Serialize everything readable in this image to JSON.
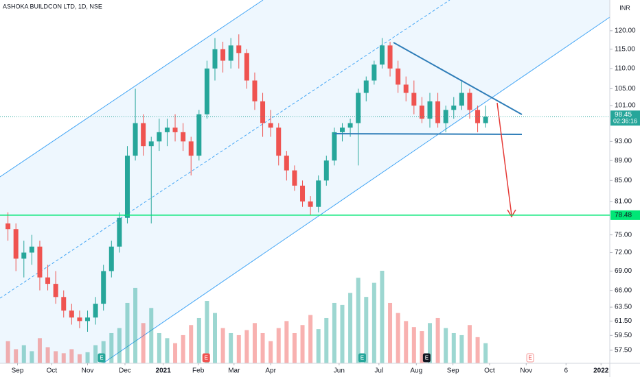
{
  "chart_data": {
    "type": "candlestick",
    "title": "ASHOKA BUILDCON LTD, 1D, NSE",
    "currency": "INR",
    "log_scale": true,
    "xlim": [
      -2,
      74.6
    ],
    "ylim": [
      55.8,
      128.8
    ],
    "xticks": [
      {
        "value": 0.2,
        "label": "Sep"
      },
      {
        "value": 4.5,
        "label": "Oct"
      },
      {
        "value": 9,
        "label": "Nov"
      },
      {
        "value": 13.7,
        "label": "Dec"
      },
      {
        "value": 18.5,
        "label": "2021"
      },
      {
        "value": 22.9,
        "label": "Feb"
      },
      {
        "value": 27.4,
        "label": "Mar"
      },
      {
        "value": 32,
        "label": "Apr"
      },
      {
        "value": 40.6,
        "label": "Jun"
      },
      {
        "value": 45.6,
        "label": "Jul"
      },
      {
        "value": 50.3,
        "label": "Aug"
      },
      {
        "value": 54.9,
        "label": "Sep"
      },
      {
        "value": 59.5,
        "label": "Oct"
      },
      {
        "value": 64.1,
        "label": "Nov"
      },
      {
        "value": 69.1,
        "label": "6"
      },
      {
        "value": 73.5,
        "label": "2022"
      }
    ],
    "yticks": [
      {
        "value": 57.5,
        "label": "57.50"
      },
      {
        "value": 59.5,
        "label": "59.50"
      },
      {
        "value": 61.5,
        "label": "61.50"
      },
      {
        "value": 63.5,
        "label": "63.50"
      },
      {
        "value": 66,
        "label": "66.00"
      },
      {
        "value": 69,
        "label": "69.00"
      },
      {
        "value": 72,
        "label": "72.00"
      },
      {
        "value": 75,
        "label": "75.00"
      },
      {
        "value": 81,
        "label": "81.00"
      },
      {
        "value": 85,
        "label": "85.00"
      },
      {
        "value": 89,
        "label": "89.00"
      },
      {
        "value": 93,
        "label": "93.00"
      },
      {
        "value": 101,
        "label": "101.00"
      },
      {
        "value": 105,
        "label": "105.00"
      },
      {
        "value": 110,
        "label": "110.00"
      },
      {
        "value": 115,
        "label": "115.00"
      },
      {
        "value": 120,
        "label": "120.00"
      }
    ],
    "up_color": "#26a69a",
    "down_color": "#ef5350",
    "x": [
      -1,
      0,
      1,
      2,
      3,
      4,
      5,
      6,
      7,
      8,
      9,
      10,
      11,
      12,
      13,
      14,
      15,
      16,
      17,
      18,
      19,
      20,
      21,
      22,
      23,
      24,
      25,
      26,
      27,
      28,
      29,
      30,
      31,
      32,
      33,
      34,
      35,
      36,
      37,
      38,
      39,
      40,
      41,
      42,
      43,
      44,
      45,
      46,
      47,
      48,
      49,
      50,
      51,
      52,
      53,
      54,
      55,
      56,
      57,
      58,
      59
    ],
    "open": [
      77,
      76,
      71,
      72,
      73,
      68,
      67,
      65,
      63,
      62,
      61.5,
      62,
      64,
      69,
      73,
      78,
      90,
      97,
      92,
      93,
      95,
      96,
      95,
      93,
      90,
      99,
      110,
      115,
      112,
      116,
      114,
      107,
      102,
      97,
      96,
      90,
      87,
      84,
      81,
      80,
      85,
      89,
      95,
      96,
      97,
      104,
      107,
      111,
      116,
      110,
      106,
      104,
      101,
      98,
      102,
      97,
      100,
      101,
      104,
      100,
      97
    ],
    "high": [
      79,
      77,
      74,
      75,
      74,
      70,
      69,
      66,
      64,
      63,
      63,
      65,
      70,
      74,
      79,
      92,
      105,
      99,
      94,
      98,
      98,
      99,
      97,
      94,
      100,
      112,
      118,
      117,
      118,
      119,
      115,
      109,
      104,
      100,
      97,
      91,
      88,
      85,
      82,
      86,
      90,
      96,
      97,
      98,
      105,
      108,
      112,
      118,
      117,
      112,
      108,
      107,
      103,
      104,
      104,
      101,
      103,
      107,
      105,
      101,
      101
    ],
    "low": [
      74,
      69,
      68,
      70,
      66,
      66,
      64,
      62,
      61,
      60.5,
      60,
      61,
      63,
      68,
      72,
      77,
      89,
      90,
      77,
      91,
      92,
      93,
      91,
      86,
      89,
      98,
      107,
      109,
      110,
      110,
      105,
      100,
      94,
      94,
      88,
      85,
      83,
      80,
      78.5,
      79,
      84,
      88,
      93,
      94,
      88,
      102,
      106,
      110,
      108,
      104,
      102,
      99,
      97,
      96,
      96,
      95,
      98,
      100,
      98,
      95,
      96
    ],
    "close": [
      76,
      71,
      72,
      73,
      68,
      67,
      65,
      63,
      62,
      61.5,
      62,
      64,
      69,
      73,
      78,
      90,
      97,
      92,
      93,
      95,
      96,
      95,
      93,
      90,
      99,
      110,
      115,
      112,
      116,
      114,
      107,
      102,
      97,
      96,
      90,
      87,
      84,
      81,
      80,
      85,
      89,
      95,
      96,
      97,
      104,
      107,
      111,
      116,
      110,
      106,
      104,
      101,
      98,
      102,
      97,
      100,
      101,
      104,
      100,
      97,
      98.45
    ],
    "volume": [
      22,
      14,
      18,
      12,
      25,
      16,
      12,
      10,
      14,
      9,
      11,
      18,
      22,
      30,
      35,
      60,
      75,
      40,
      55,
      30,
      25,
      20,
      28,
      38,
      45,
      62,
      50,
      35,
      30,
      28,
      33,
      40,
      30,
      22,
      35,
      42,
      30,
      38,
      48,
      34,
      45,
      60,
      58,
      70,
      85,
      66,
      80,
      92,
      60,
      50,
      42,
      36,
      32,
      40,
      45,
      35,
      30,
      28,
      38,
      26,
      20
    ],
    "support": 78.48,
    "support_color": "#00e676",
    "last_price": 98.45,
    "countdown": "02:36:16",
    "earnings": {
      "x": [
        10.76,
        23.9,
        43.5,
        51.6,
        64.6
      ],
      "label": "E"
    }
  }
}
